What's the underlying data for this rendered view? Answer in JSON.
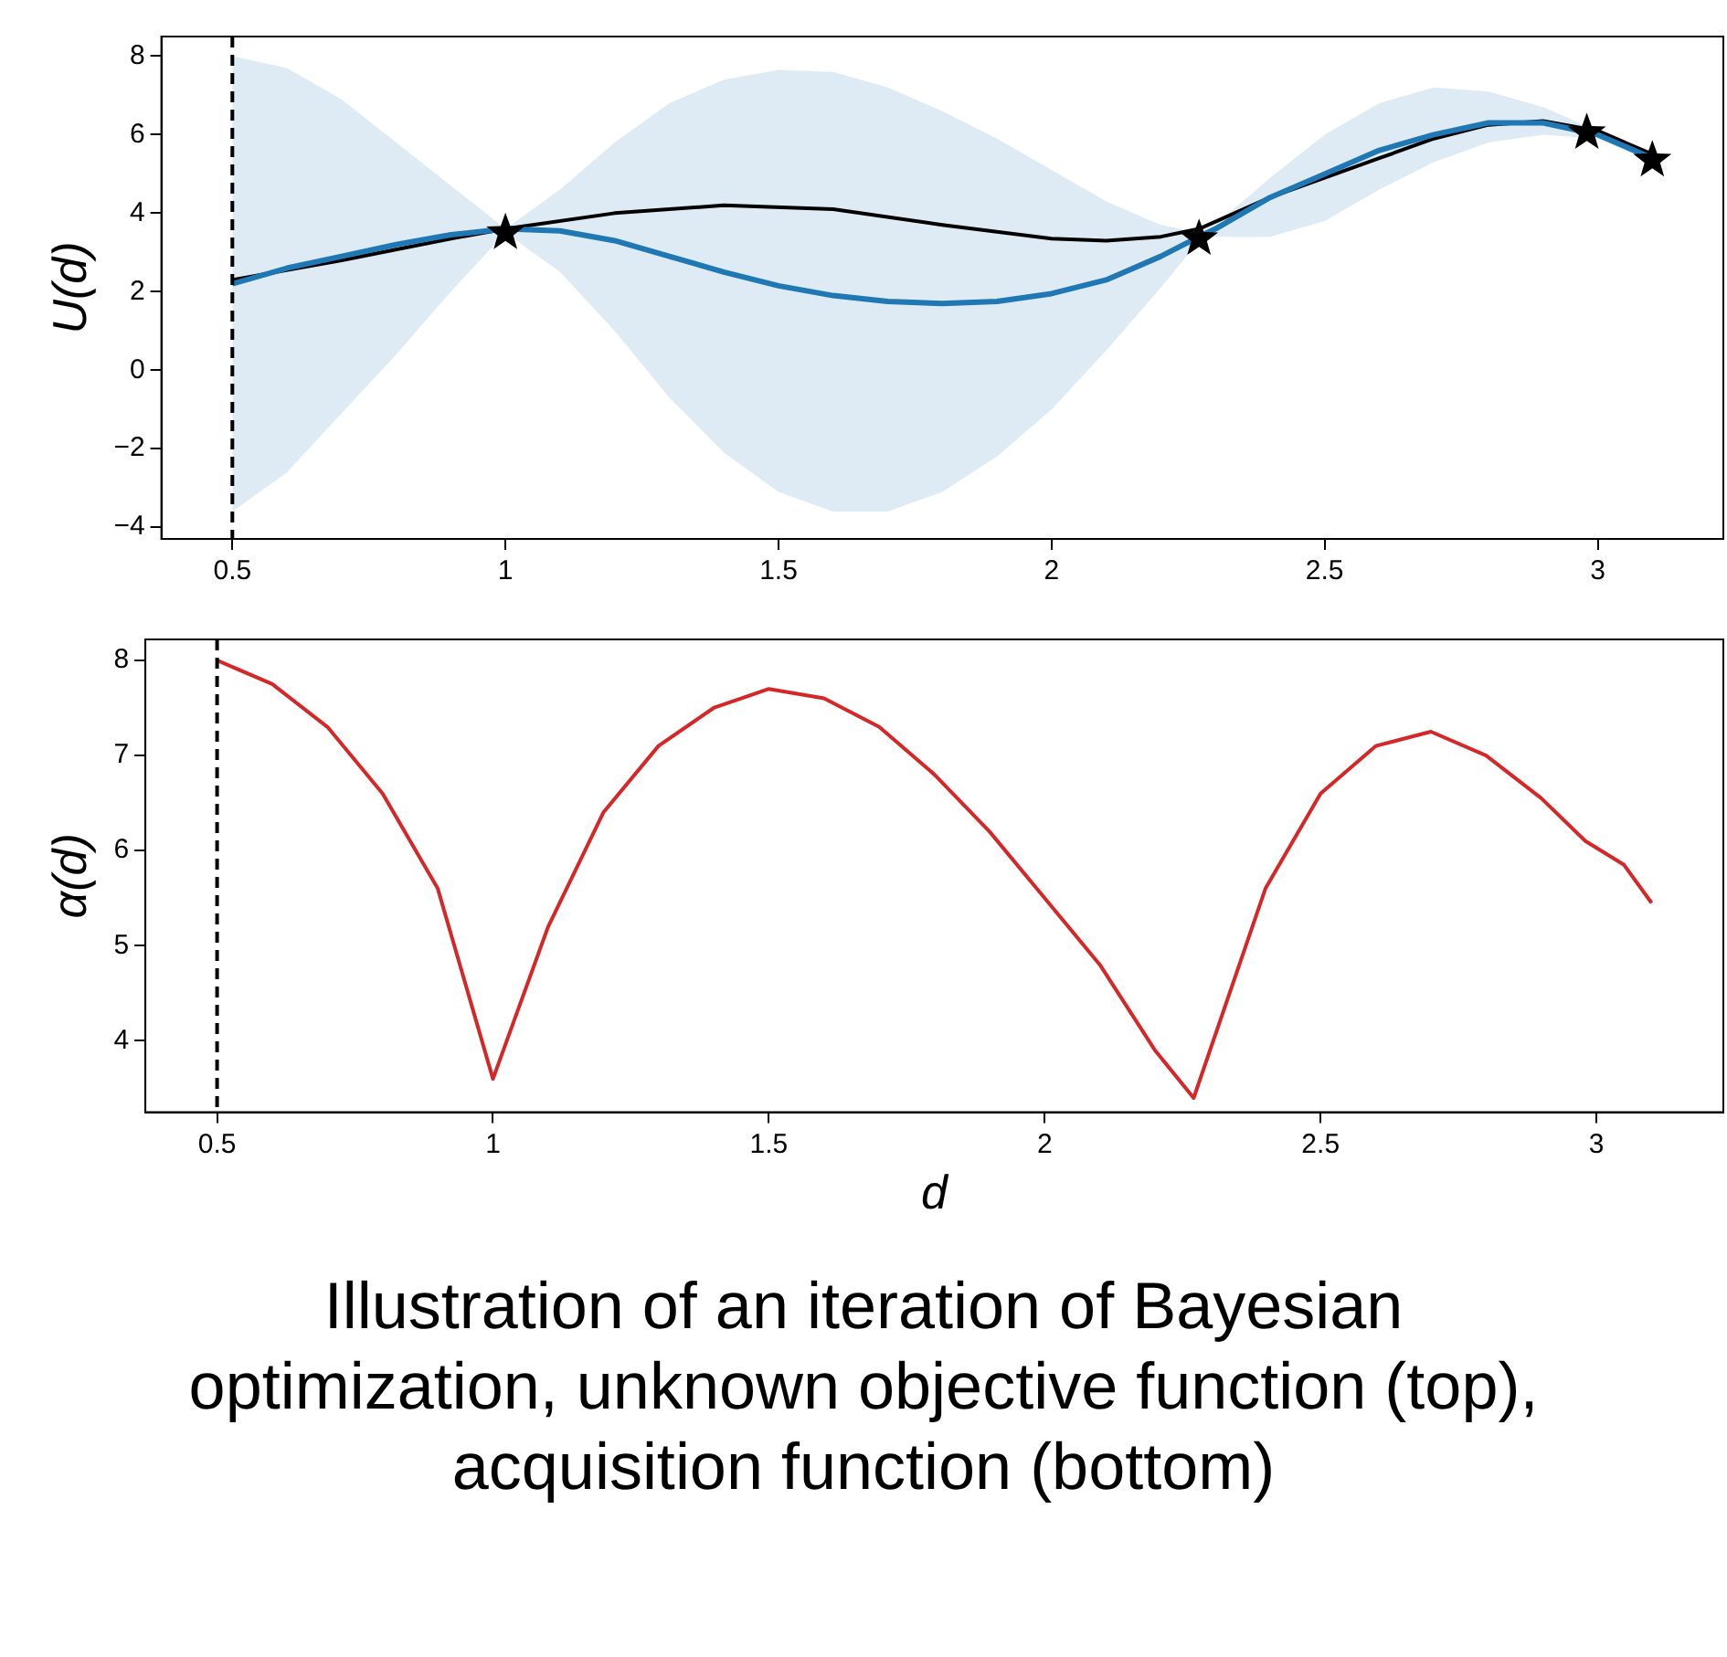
{
  "chart_data": [
    {
      "type": "line",
      "ylabel": "U(d)",
      "xlim": [
        0.37,
        3.23
      ],
      "ylim": [
        -4.3,
        8.5
      ],
      "xticks": [
        0.5,
        1.0,
        1.5,
        2.0,
        2.5,
        3.0
      ],
      "yticks": [
        {
          "value": -4,
          "label": "−4"
        },
        {
          "value": -2,
          "label": "−2"
        },
        0,
        2,
        4,
        6,
        8
      ],
      "grid": false,
      "legend": false,
      "series": [
        {
          "type": "line",
          "color": "#1f77b4",
          "x": [
            0.5,
            0.6,
            0.7,
            0.8,
            0.9,
            1.0,
            1.1,
            1.2,
            1.3,
            1.4,
            1.5,
            1.6,
            1.7,
            1.8,
            1.9,
            2.0,
            2.1,
            2.2,
            2.27,
            2.3,
            2.4,
            2.5,
            2.6,
            2.7,
            2.8,
            2.9,
            3.0,
            3.1
          ],
          "values": [
            2.2,
            2.6,
            2.9,
            3.2,
            3.45,
            3.6,
            3.55,
            3.3,
            2.9,
            2.5,
            2.15,
            1.9,
            1.75,
            1.7,
            1.75,
            1.95,
            2.3,
            2.9,
            3.4,
            3.6,
            4.4,
            5.0,
            5.6,
            6.0,
            6.3,
            6.3,
            6.0,
            5.4
          ],
          "upper": [
            8.0,
            7.7,
            6.9,
            5.8,
            4.7,
            3.6,
            4.6,
            5.8,
            6.8,
            7.4,
            7.65,
            7.6,
            7.2,
            6.6,
            5.9,
            5.1,
            4.3,
            3.7,
            3.5,
            3.7,
            4.9,
            6.0,
            6.8,
            7.2,
            7.1,
            6.7,
            6.1,
            5.5
          ],
          "lower": [
            -3.6,
            -2.6,
            -1.1,
            0.4,
            2.0,
            3.5,
            2.5,
            1.0,
            -0.7,
            -2.1,
            -3.1,
            -3.6,
            -3.6,
            -3.1,
            -2.2,
            -1.0,
            0.5,
            2.1,
            3.3,
            3.4,
            3.4,
            3.8,
            4.6,
            5.3,
            5.8,
            6.0,
            5.9,
            5.3
          ]
        },
        {
          "type": "line",
          "color": "#000000",
          "x": [
            0.5,
            0.7,
            0.9,
            1.0,
            1.2,
            1.4,
            1.6,
            1.8,
            2.0,
            2.1,
            2.2,
            2.27,
            2.4,
            2.5,
            2.6,
            2.7,
            2.8,
            2.9,
            3.0,
            3.1
          ],
          "values": [
            2.3,
            2.8,
            3.35,
            3.6,
            4.0,
            4.2,
            4.1,
            3.7,
            3.35,
            3.3,
            3.4,
            3.6,
            4.4,
            4.9,
            5.4,
            5.9,
            6.25,
            6.35,
            6.1,
            5.5
          ]
        },
        {
          "type": "scatter",
          "color": "#000000",
          "marker": "star",
          "x": [
            1.0,
            2.27,
            2.98,
            3.1
          ],
          "values": [
            3.5,
            3.35,
            6.05,
            5.35
          ]
        }
      ],
      "ref_lines": [
        {
          "axis": "x",
          "value": 0.5,
          "color": "#000000",
          "line_style": "dashed"
        }
      ]
    },
    {
      "type": "line",
      "xlabel": "d",
      "ylabel": "α(d)",
      "xlim": [
        0.37,
        3.23
      ],
      "ylim": [
        3.25,
        8.22
      ],
      "xticks": [
        0.5,
        1.0,
        1.5,
        2.0,
        2.5,
        3.0
      ],
      "yticks": [
        4,
        5,
        6,
        7,
        8
      ],
      "grid": false,
      "legend": false,
      "series": [
        {
          "type": "line",
          "color": "#d62728",
          "x": [
            0.5,
            0.6,
            0.7,
            0.8,
            0.9,
            1.0,
            1.1,
            1.2,
            1.3,
            1.4,
            1.5,
            1.6,
            1.7,
            1.8,
            1.9,
            2.0,
            2.1,
            2.2,
            2.27,
            2.4,
            2.5,
            2.6,
            2.7,
            2.8,
            2.9,
            2.98,
            3.05,
            3.1
          ],
          "values": [
            8.0,
            7.75,
            7.3,
            6.6,
            5.6,
            3.6,
            5.2,
            6.4,
            7.1,
            7.5,
            7.7,
            7.6,
            7.3,
            6.8,
            6.2,
            5.5,
            4.8,
            3.9,
            3.4,
            5.6,
            6.6,
            7.1,
            7.25,
            7.0,
            6.55,
            6.1,
            5.85,
            5.45
          ]
        }
      ],
      "ref_lines": [
        {
          "axis": "x",
          "value": 0.5,
          "color": "#000000",
          "line_style": "dashed"
        }
      ],
      "annotations": [
        "Illustration of an iteration of Bayesian optimization, unknown objective function (top), acquisition function (bottom)"
      ]
    }
  ]
}
